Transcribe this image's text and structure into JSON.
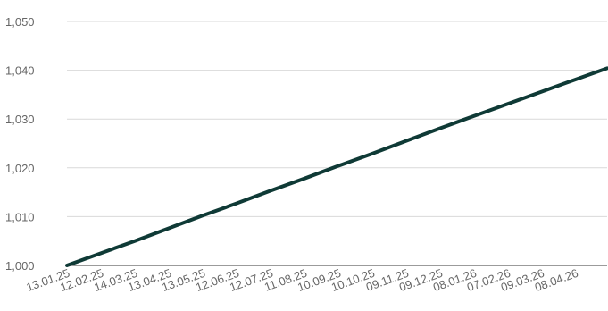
{
  "chart_data": {
    "type": "line",
    "title": "",
    "xlabel": "",
    "ylabel": "",
    "x_start": "2025-01-13",
    "x_end": "2026-05-06",
    "ylim": [
      1000,
      1050
    ],
    "y_ticks": [
      1000,
      1010,
      1020,
      1030,
      1040,
      1050
    ],
    "y_tick_labels": [
      "1,000",
      "1,010",
      "1,020",
      "1,030",
      "1,040",
      "1,050"
    ],
    "x_ticks": [
      {
        "date": "2025-01-13",
        "label": "13.01.25"
      },
      {
        "date": "2025-02-12",
        "label": "12.02.25"
      },
      {
        "date": "2025-03-14",
        "label": "14.03.25"
      },
      {
        "date": "2025-04-13",
        "label": "13.04.25"
      },
      {
        "date": "2025-05-13",
        "label": "13.05.25"
      },
      {
        "date": "2025-06-12",
        "label": "12.06.25"
      },
      {
        "date": "2025-07-12",
        "label": "12.07.25"
      },
      {
        "date": "2025-08-11",
        "label": "11.08.25"
      },
      {
        "date": "2025-09-10",
        "label": "10.09.25"
      },
      {
        "date": "2025-10-10",
        "label": "10.10.25"
      },
      {
        "date": "2025-11-09",
        "label": "09.11.25"
      },
      {
        "date": "2025-12-09",
        "label": "09.12.25"
      },
      {
        "date": "2026-01-08",
        "label": "08.01.26"
      },
      {
        "date": "2026-02-07",
        "label": "07.02.26"
      },
      {
        "date": "2026-03-09",
        "label": "09.03.26"
      },
      {
        "date": "2026-04-08",
        "label": "08.04.26"
      }
    ],
    "grid": true,
    "legend": "none",
    "colors": {
      "line": "#0f3a36",
      "grid": "#d9d9d9",
      "axis": "#5f5f5f",
      "text": "#666666"
    },
    "series": [
      {
        "points": [
          {
            "x": "2025-01-13",
            "y": 1000.0
          },
          {
            "x": "2025-02-12",
            "y": 1002.5
          },
          {
            "x": "2025-03-14",
            "y": 1005.0
          },
          {
            "x": "2025-04-13",
            "y": 1007.6
          },
          {
            "x": "2025-05-13",
            "y": 1010.2
          },
          {
            "x": "2025-06-12",
            "y": 1012.7
          },
          {
            "x": "2025-07-12",
            "y": 1015.3
          },
          {
            "x": "2025-08-11",
            "y": 1017.8
          },
          {
            "x": "2025-09-10",
            "y": 1020.4
          },
          {
            "x": "2025-10-10",
            "y": 1022.9
          },
          {
            "x": "2025-11-09",
            "y": 1025.5
          },
          {
            "x": "2025-12-09",
            "y": 1028.1
          },
          {
            "x": "2026-01-08",
            "y": 1030.6
          },
          {
            "x": "2026-02-07",
            "y": 1033.1
          },
          {
            "x": "2026-03-09",
            "y": 1035.6
          },
          {
            "x": "2026-04-08",
            "y": 1038.1
          },
          {
            "x": "2026-05-06",
            "y": 1040.4
          }
        ]
      }
    ]
  }
}
